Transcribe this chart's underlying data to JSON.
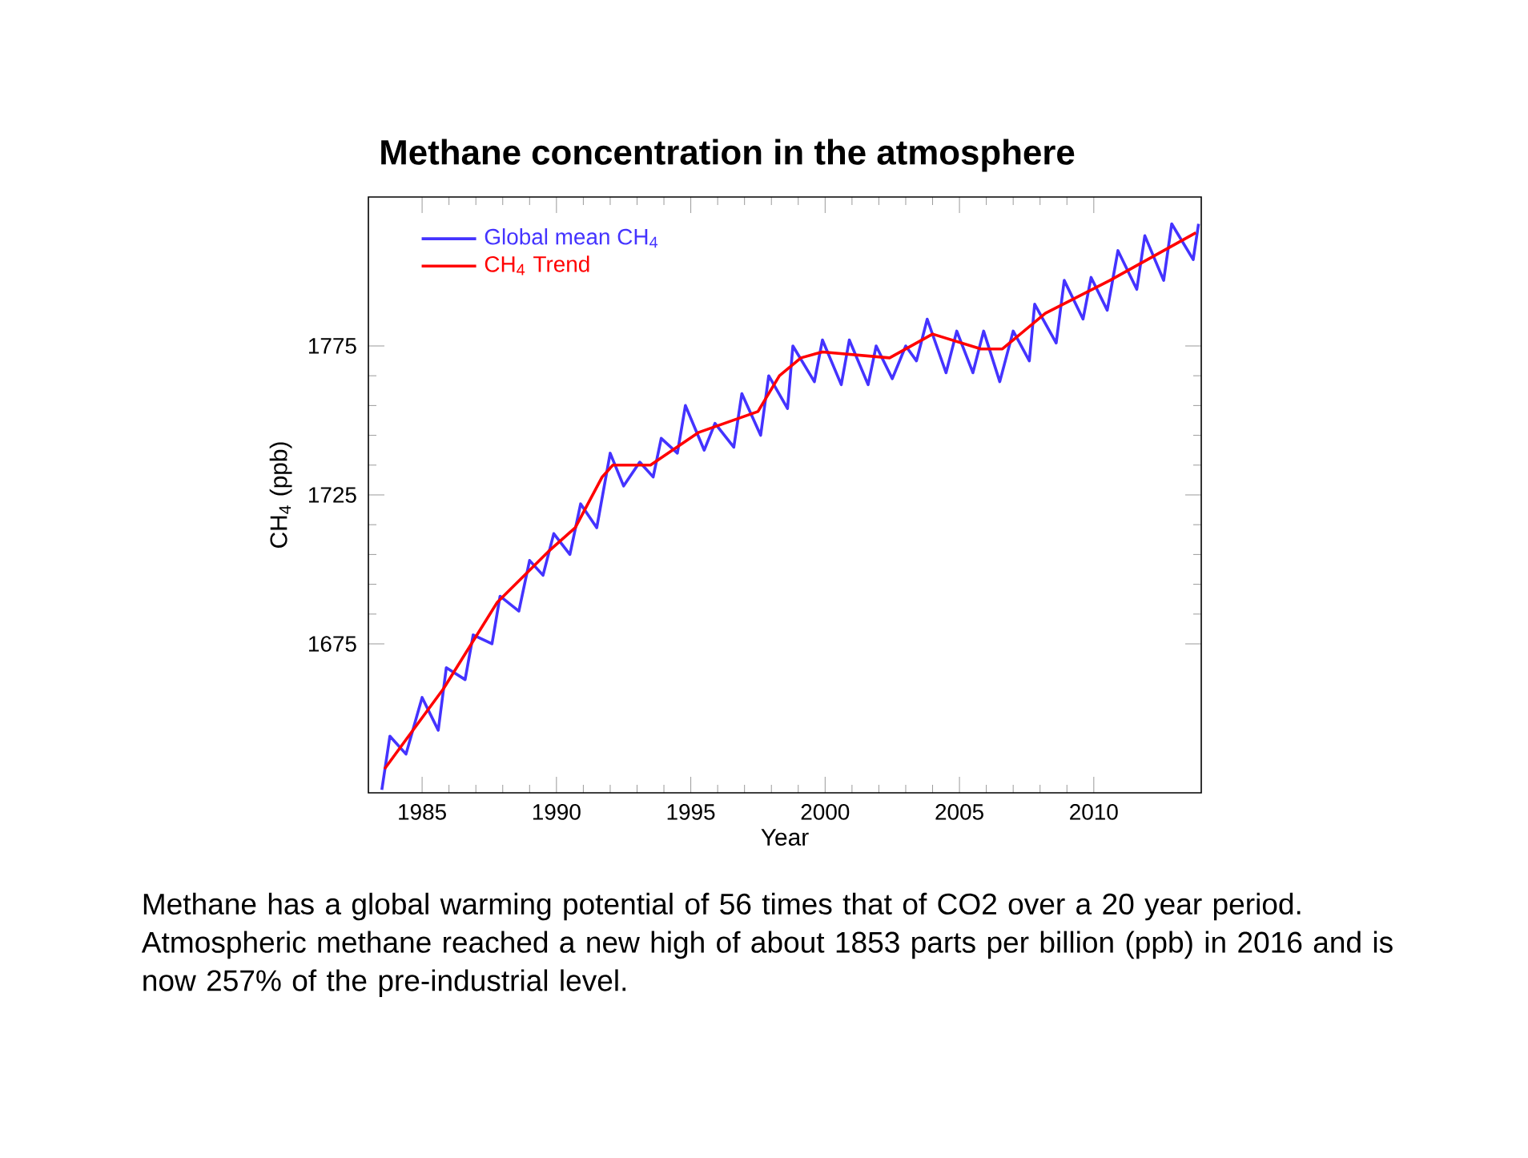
{
  "chart_data": {
    "type": "line",
    "title": "Methane concentration in the atmosphere",
    "xlabel": "Year",
    "ylabel": "CH$_{4}$ (ppb)",
    "xlim": [
      1983,
      2014
    ],
    "ylim": [
      1625,
      1825
    ],
    "xticks": [
      1985,
      1990,
      1995,
      2000,
      2005,
      2010
    ],
    "yticks": [
      1675,
      1725,
      1775
    ],
    "grid": false,
    "legend": "top left",
    "marker": "none",
    "line_style": "solid",
    "series": [
      {
        "name": "Global mean CH$_{4}$",
        "color": "#4433ff",
        "x": [
          1983.5,
          1983.8,
          1984.4,
          1985.0,
          1985.6,
          1985.9,
          1986.6,
          1986.9,
          1987.6,
          1987.9,
          1988.6,
          1989.0,
          1989.5,
          1989.9,
          1990.5,
          1990.9,
          1991.5,
          1992.0,
          1992.5,
          1993.1,
          1993.6,
          1993.9,
          1994.5,
          1994.8,
          1995.5,
          1995.9,
          1996.6,
          1996.9,
          1997.6,
          1997.9,
          1998.6,
          1998.8,
          1999.6,
          1999.9,
          2000.6,
          2000.9,
          2001.6,
          2001.9,
          2002.5,
          2003.0,
          2003.4,
          2003.8,
          2004.5,
          2004.9,
          2005.5,
          2005.9,
          2006.5,
          2007.0,
          2007.6,
          2007.8,
          2008.6,
          2008.9,
          2009.6,
          2009.9,
          2010.5,
          2010.9,
          2011.6,
          2011.9,
          2012.6,
          2012.9,
          2013.7,
          2013.9
        ],
        "values": [
          1626,
          1644,
          1638,
          1657,
          1646,
          1667,
          1663,
          1678,
          1675,
          1691,
          1686,
          1703,
          1698,
          1712,
          1705,
          1722,
          1714,
          1739,
          1728,
          1736,
          1731,
          1744,
          1739,
          1755,
          1740,
          1749,
          1741,
          1759,
          1745,
          1765,
          1754,
          1775,
          1763,
          1777,
          1762,
          1777,
          1762,
          1775,
          1764,
          1775,
          1770,
          1784,
          1766,
          1780,
          1766,
          1780,
          1763,
          1780,
          1770,
          1789,
          1776,
          1797,
          1784,
          1798,
          1787,
          1807,
          1794,
          1812,
          1797,
          1816,
          1804,
          1816
        ]
      },
      {
        "name": "CH$_{4}$ Trend",
        "color": "#ff0000",
        "x": [
          1983.6,
          1985.8,
          1987.8,
          1989.7,
          1990.7,
          1991.7,
          1992.1,
          1993.5,
          1995.3,
          1997.5,
          1998.3,
          1999.1,
          1999.9,
          2002.4,
          2004.0,
          2005.8,
          2006.6,
          2008.2,
          2010.6,
          2013.8
        ],
        "values": [
          1633,
          1660,
          1689,
          1706,
          1714,
          1731,
          1735,
          1735,
          1746,
          1753,
          1765,
          1771,
          1773,
          1771,
          1779,
          1774,
          1774,
          1786,
          1797,
          1813
        ]
      }
    ],
    "annotations": [
      "Methane has a global warming potential of 56 times that of CO2 over a 20 year period. Atmospheric methane reached a new high of about 1853 parts per billion (ppb) in 2016 and is now 257% of the pre-industrial level."
    ]
  }
}
